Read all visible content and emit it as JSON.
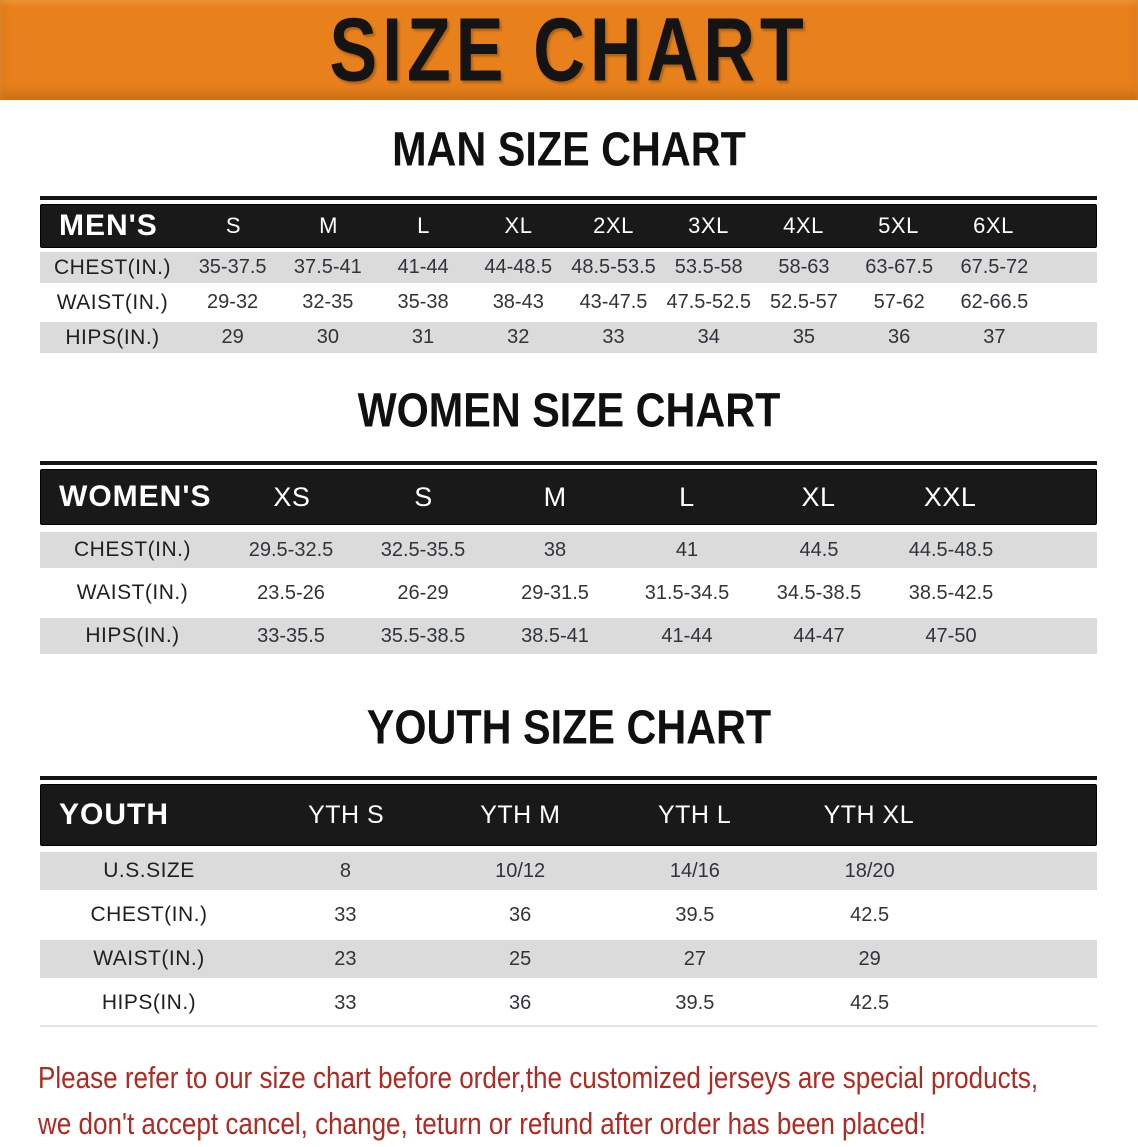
{
  "banner": {
    "title": "SIZE CHART",
    "background_color": "#E8801B",
    "text_color": "#141414"
  },
  "colors": {
    "table_header_bg": "#191919",
    "table_header_text": "#FFFFFF",
    "stripe_row_bg": "#DBDBDB",
    "body_text": "#2B2B2B",
    "disclaimer_text": "#AD2B22"
  },
  "sections": [
    {
      "title": "MAN SIZE CHART",
      "table": {
        "header_label": "MEN'S",
        "columns": [
          "S",
          "M",
          "L",
          "XL",
          "2XL",
          "3XL",
          "4XL",
          "5XL",
          "6XL"
        ],
        "rows": [
          {
            "label": "CHEST(IN.)",
            "values": [
              "35-37.5",
              "37.5-41",
              "41-44",
              "44-48.5",
              "48.5-53.5",
              "53.5-58",
              "58-63",
              "63-67.5",
              "67.5-72"
            ]
          },
          {
            "label": "WAIST(IN.)",
            "values": [
              "29-32",
              "32-35",
              "35-38",
              "38-43",
              "43-47.5",
              "47.5-52.5",
              "52.5-57",
              "57-62",
              "62-66.5"
            ]
          },
          {
            "label": "HIPS(IN.)",
            "values": [
              "29",
              "30",
              "31",
              "32",
              "33",
              "34",
              "35",
              "36",
              "37"
            ]
          }
        ]
      }
    },
    {
      "title": "WOMEN SIZE CHART",
      "table": {
        "header_label": "WOMEN'S",
        "columns": [
          "XS",
          "S",
          "M",
          "L",
          "XL",
          "XXL"
        ],
        "rows": [
          {
            "label": "CHEST(IN.)",
            "values": [
              "29.5-32.5",
              "32.5-35.5",
              "38",
              "41",
              "44.5",
              "44.5-48.5"
            ]
          },
          {
            "label": "WAIST(IN.)",
            "values": [
              "23.5-26",
              "26-29",
              "29-31.5",
              "31.5-34.5",
              "34.5-38.5",
              "38.5-42.5"
            ]
          },
          {
            "label": "HIPS(IN.)",
            "values": [
              "33-35.5",
              "35.5-38.5",
              "38.5-41",
              "41-44",
              "44-47",
              "47-50"
            ]
          }
        ]
      }
    },
    {
      "title": "YOUTH SIZE CHART",
      "table": {
        "header_label": "YOUTH",
        "columns": [
          "YTH S",
          "YTH M",
          "YTH L",
          "YTH XL"
        ],
        "rows": [
          {
            "label": "U.S.SIZE",
            "values": [
              "8",
              "10/12",
              "14/16",
              "18/20"
            ]
          },
          {
            "label": "CHEST(IN.)",
            "values": [
              "33",
              "36",
              "39.5",
              "42.5"
            ]
          },
          {
            "label": "WAIST(IN.)",
            "values": [
              "23",
              "25",
              "27",
              "29"
            ]
          },
          {
            "label": "HIPS(IN.)",
            "values": [
              "33",
              "36",
              "39.5",
              "42.5"
            ]
          }
        ]
      }
    }
  ],
  "footer": {
    "line1": "Please refer to our size chart before order,the customized jerseys are special products,",
    "line2": "we don't accept cancel, change, teturn or refund after order has been placed!"
  }
}
